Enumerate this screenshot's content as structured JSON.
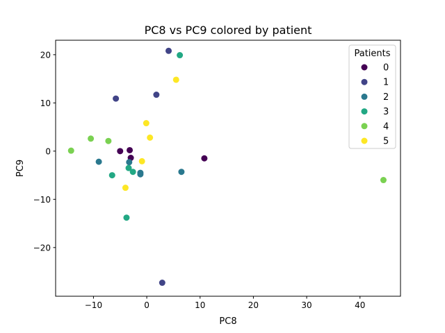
{
  "chart_data": {
    "type": "scatter",
    "title": "PC8 vs PC9 colored by patient",
    "xlabel": "PC8",
    "ylabel": "PC9",
    "xlim": [
      -17.1,
      47.6
    ],
    "ylim": [
      -30.1,
      23.0
    ],
    "xticks": [
      -10,
      0,
      10,
      20,
      30,
      40
    ],
    "yticks": [
      -20,
      -10,
      0,
      10,
      20
    ],
    "grid": false,
    "legend": {
      "title": "Patients",
      "placement": "top-right"
    },
    "series": [
      {
        "name": "0",
        "color": "#440154",
        "points": [
          [
            -5.0,
            0.0
          ],
          [
            -3.2,
            0.2
          ],
          [
            -3.0,
            -1.4
          ],
          [
            10.8,
            -1.5
          ]
        ]
      },
      {
        "name": "1",
        "color": "#414487",
        "points": [
          [
            4.1,
            20.8
          ],
          [
            -5.8,
            10.9
          ],
          [
            1.8,
            11.7
          ],
          [
            2.9,
            -27.3
          ]
        ]
      },
      {
        "name": "2",
        "color": "#2a788e",
        "points": [
          [
            -9.0,
            -2.2
          ],
          [
            -3.3,
            -2.3
          ],
          [
            -1.2,
            -4.5
          ],
          [
            -1.2,
            -4.8
          ],
          [
            6.5,
            -4.3
          ]
        ]
      },
      {
        "name": "3",
        "color": "#22a884",
        "points": [
          [
            6.2,
            19.9
          ],
          [
            -3.4,
            -3.5
          ],
          [
            -2.6,
            -4.3
          ],
          [
            -6.5,
            -5.0
          ],
          [
            -3.8,
            -13.8
          ]
        ]
      },
      {
        "name": "4",
        "color": "#7ad151",
        "points": [
          [
            -14.2,
            0.1
          ],
          [
            -10.5,
            2.6
          ],
          [
            -7.2,
            2.1
          ],
          [
            44.4,
            -6.0
          ]
        ]
      },
      {
        "name": "5",
        "color": "#fde725",
        "points": [
          [
            5.5,
            14.8
          ],
          [
            -0.1,
            5.8
          ],
          [
            0.6,
            2.8
          ],
          [
            -0.9,
            -2.1
          ],
          [
            -4.0,
            -7.6
          ]
        ]
      }
    ]
  }
}
